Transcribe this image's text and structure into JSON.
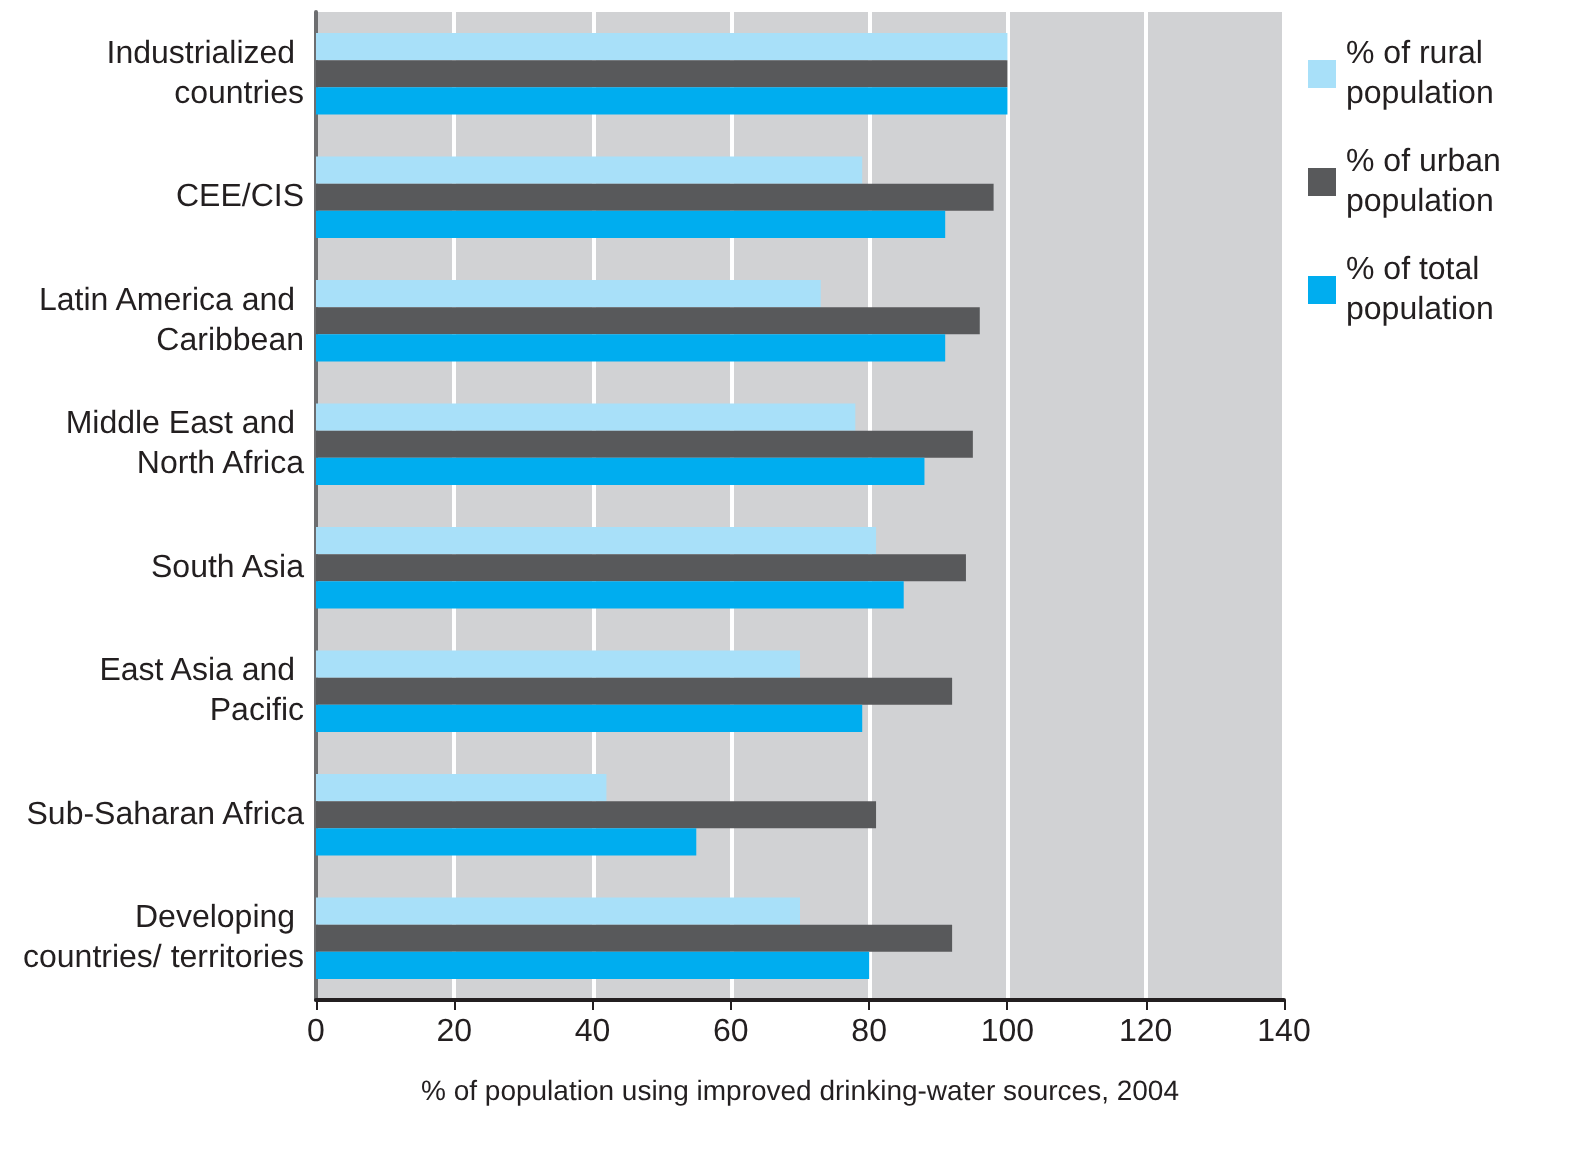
{
  "chart_data": {
    "type": "bar",
    "orientation": "horizontal",
    "xlabel": "% of population using improved drinking-water sources, 2004",
    "categories": [
      "Industrialized countries",
      "CEE/CIS",
      "Latin America and Caribbean",
      "Middle East and North Africa",
      "South Asia",
      "East Asia and Pacific",
      "Sub-Saharan Africa",
      "Developing countries/ territories"
    ],
    "series": [
      {
        "name": "% of rural population",
        "color": "#a8e0f9",
        "values": [
          100,
          79,
          73,
          78,
          81,
          70,
          42,
          70
        ]
      },
      {
        "name": "% of urban population",
        "color": "#58595b",
        "values": [
          100,
          98,
          96,
          95,
          94,
          92,
          81,
          92
        ]
      },
      {
        "name": "% of total population",
        "color": "#00adef",
        "values": [
          100,
          91,
          91,
          88,
          85,
          79,
          55,
          80
        ]
      }
    ],
    "xlim": [
      0,
      140
    ],
    "xticks": [
      0,
      20,
      40,
      60,
      80,
      100,
      120,
      140
    ],
    "grid": "x",
    "legend": "right"
  }
}
